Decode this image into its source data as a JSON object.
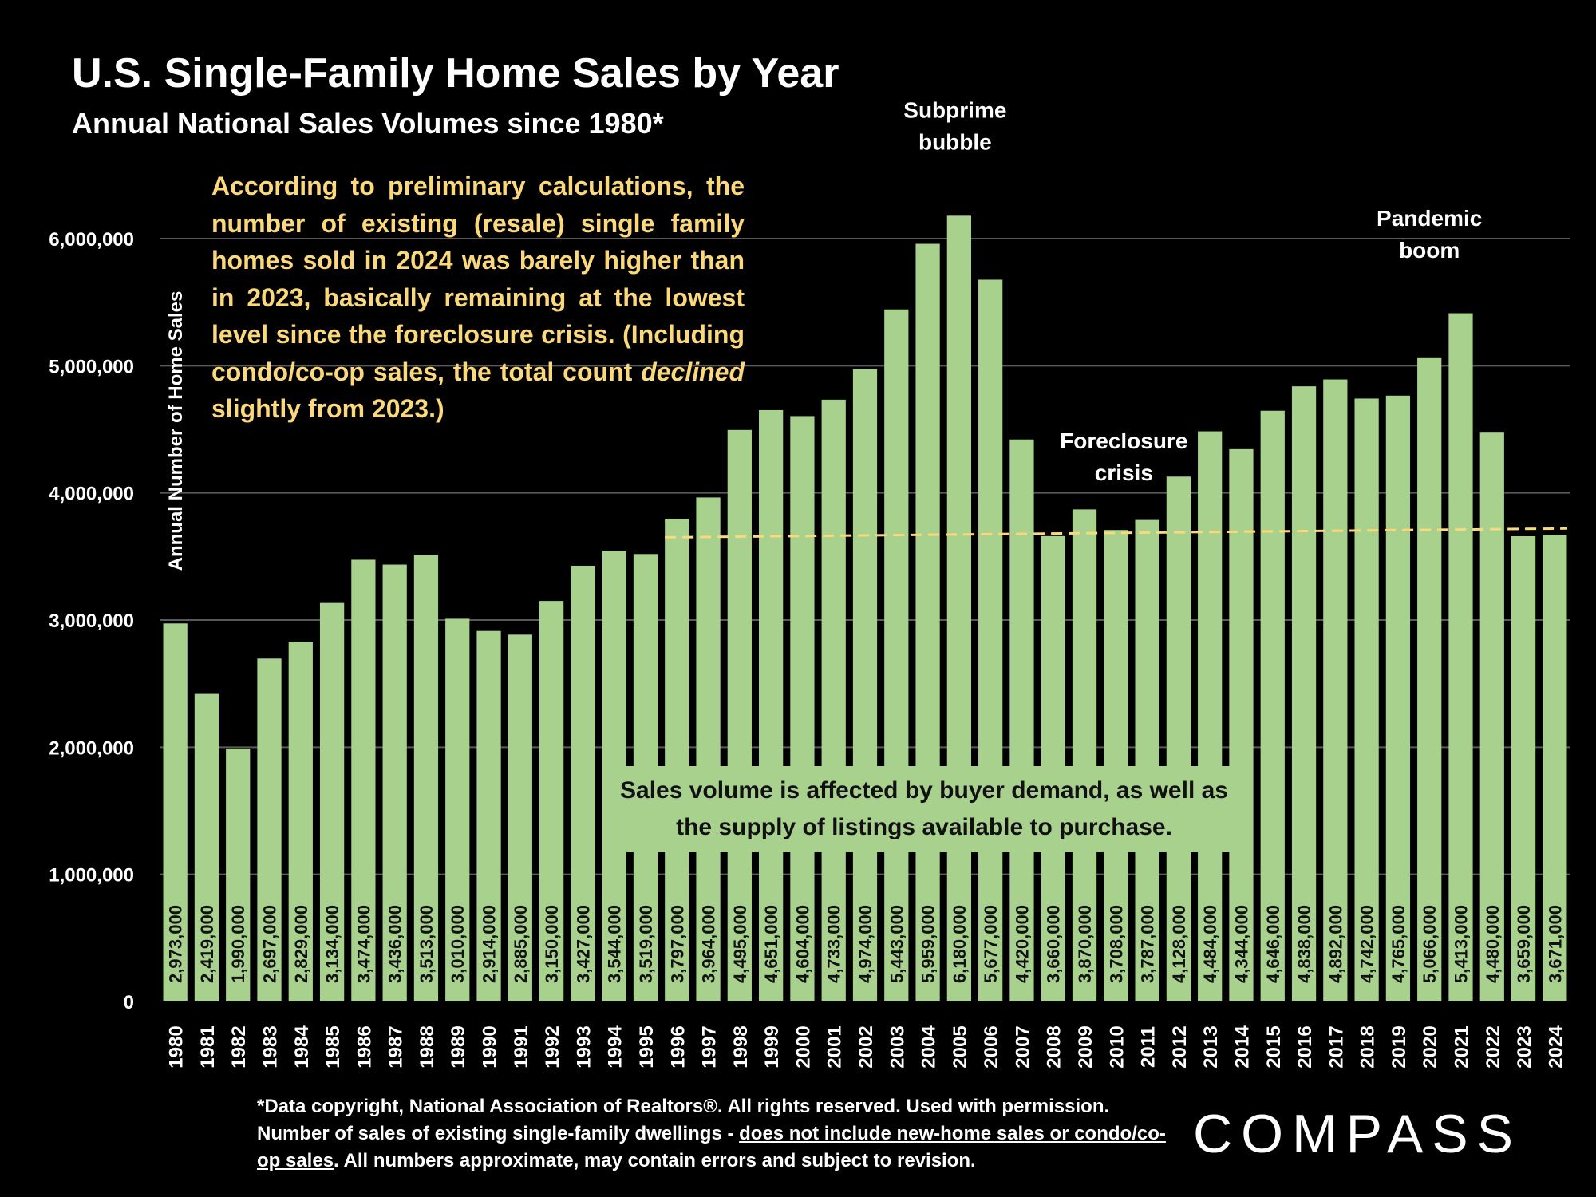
{
  "header": {
    "title": "U.S. Single-Family Home Sales by Year",
    "subtitle": "Annual National Sales Volumes since 1980*"
  },
  "callout": {
    "part1": "According to preliminary calculations, the number of existing (resale) single family homes sold in 2024 was barely higher than in 2023, basically remaining at the lowest level since the foreclosure crisis. (Including condo/co-op sales, the total count ",
    "emphasis": "declined",
    "part2": " slightly from 2023.)"
  },
  "note_box": "Sales volume is affected by buyer demand, as well as the supply of listings available to purchase.",
  "footnote": {
    "line1": "*Data copyright, National Association of Realtors®. All rights reserved. Used with permission.",
    "line2_plain": "Number of sales of existing single-family dwellings - ",
    "line2_underlined": "does not include new-home sales or condo/co-op sales",
    "line2_end": ". All numbers approximate, may contain errors and subject to revision."
  },
  "logo": "COMPASS",
  "colors": {
    "background": "#000000",
    "bar": "#a9d18e",
    "callout_text": "#fbd87a",
    "dashed_line": "#fbd87a",
    "gridline": "#595959"
  },
  "chart_data": {
    "type": "bar",
    "ylabel": "Annual Number of Home Sales",
    "ylim": [
      0,
      6000000
    ],
    "yticks": [
      0,
      1000000,
      2000000,
      3000000,
      4000000,
      5000000,
      6000000
    ],
    "ytick_labels": [
      "0",
      "1,000,000",
      "2,000,000",
      "3,000,000",
      "4,000,000",
      "5,000,000",
      "6,000,000"
    ],
    "grid": true,
    "categories": [
      "1980",
      "1981",
      "1982",
      "1983",
      "1984",
      "1985",
      "1986",
      "1987",
      "1988",
      "1989",
      "1990",
      "1991",
      "1992",
      "1993",
      "1994",
      "1995",
      "1996",
      "1997",
      "1998",
      "1999",
      "2000",
      "2001",
      "2002",
      "2003",
      "2004",
      "2005",
      "2006",
      "2007",
      "2008",
      "2009",
      "2010",
      "2011",
      "2012",
      "2013",
      "2014",
      "2015",
      "2016",
      "2017",
      "2018",
      "2019",
      "2020",
      "2021",
      "2022",
      "2023",
      "2024"
    ],
    "values": [
      2973000,
      2419000,
      1990000,
      2697000,
      2829000,
      3134000,
      3474000,
      3436000,
      3513000,
      3010000,
      2914000,
      2885000,
      3150000,
      3427000,
      3544000,
      3519000,
      3797000,
      3964000,
      4495000,
      4651000,
      4604000,
      4733000,
      4974000,
      5443000,
      5959000,
      6180000,
      5677000,
      4420000,
      3660000,
      3870000,
      3708000,
      3787000,
      4128000,
      4484000,
      4344000,
      4646000,
      4838000,
      4892000,
      4742000,
      4765000,
      5066000,
      5413000,
      4480000,
      3659000,
      3671000
    ],
    "data_labels": [
      "2,973,000",
      "2,419,000",
      "1,990,000",
      "2,697,000",
      "2,829,000",
      "3,134,000",
      "3,474,000",
      "3,436,000",
      "3,513,000",
      "3,010,000",
      "2,914,000",
      "2,885,000",
      "3,150,000",
      "3,427,000",
      "3,544,000",
      "3,519,000",
      "3,797,000",
      "3,964,000",
      "4,495,000",
      "4,651,000",
      "4,604,000",
      "4,733,000",
      "4,974,000",
      "5,443,000",
      "5,959,000",
      "6,180,000",
      "5,677,000",
      "4,420,000",
      "3,660,000",
      "3,870,000",
      "3,708,000",
      "3,787,000",
      "4,128,000",
      "4,484,000",
      "4,344,000",
      "4,646,000",
      "4,838,000",
      "4,892,000",
      "4,742,000",
      "4,765,000",
      "5,066,000",
      "5,413,000",
      "4,480,000",
      "3,659,000",
      "3,671,000"
    ],
    "trend_line": {
      "style": "dashed",
      "from_category": "1996",
      "from_value": 3650000,
      "to_category": "2024",
      "to_value": 3720000
    },
    "annotations": [
      {
        "lines": [
          "Subprime",
          "bubble"
        ],
        "category": "2005",
        "value": 6950000
      },
      {
        "lines": [
          "Foreclosure",
          "crisis"
        ],
        "category": "2010",
        "value": 4350000
      },
      {
        "lines": [
          "Pandemic",
          "boom"
        ],
        "category": "2020",
        "value": 6100000
      }
    ]
  }
}
